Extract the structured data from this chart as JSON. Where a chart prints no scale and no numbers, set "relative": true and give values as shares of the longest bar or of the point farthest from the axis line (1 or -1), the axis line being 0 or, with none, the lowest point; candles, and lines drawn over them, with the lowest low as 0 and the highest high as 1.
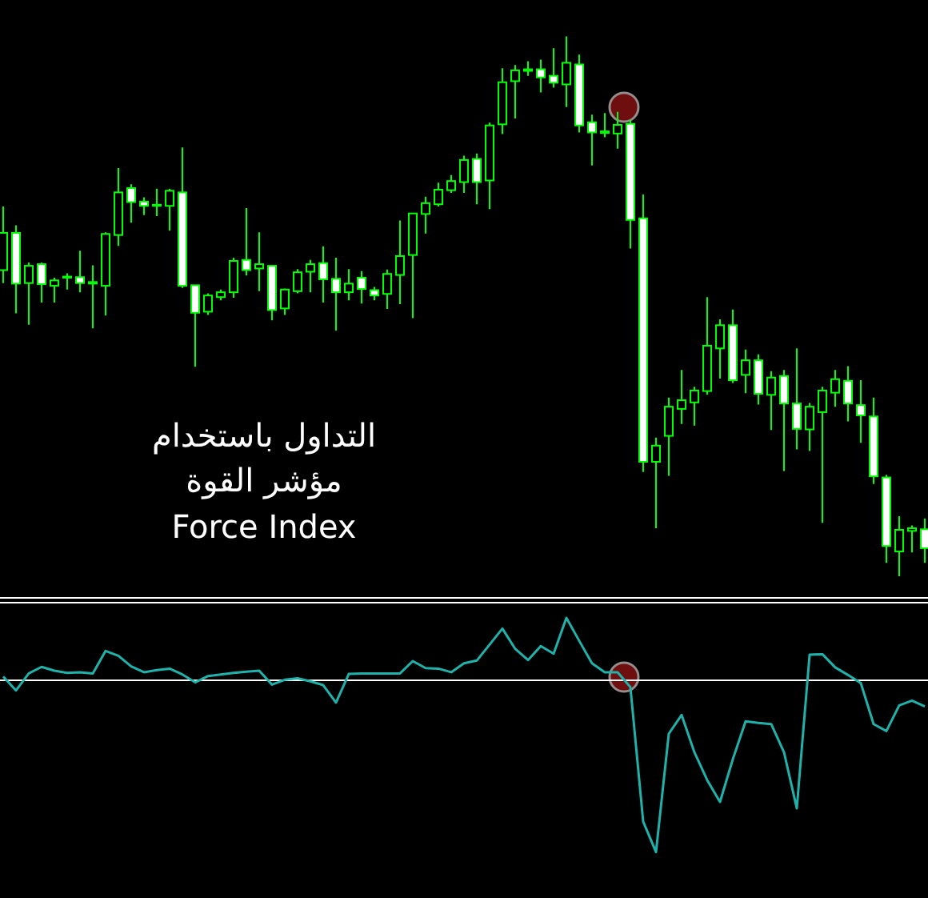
{
  "chart_data": [
    {
      "type": "candlestick",
      "relative": true,
      "color": "#00ff00",
      "categories": [
        null,
        null,
        null,
        null,
        null,
        null,
        null,
        null,
        null,
        null,
        null,
        null,
        null,
        null,
        null,
        null,
        null,
        null,
        null,
        null,
        null,
        null,
        null,
        null,
        null,
        null,
        null,
        null,
        null,
        null,
        null,
        null,
        null,
        null,
        null,
        null,
        null,
        null,
        null,
        null,
        null,
        null,
        null,
        null,
        null,
        null,
        null,
        null,
        null,
        null,
        null,
        null,
        null,
        null,
        null,
        null,
        null,
        null,
        null,
        null,
        null,
        null,
        null,
        null,
        null,
        null,
        null,
        null,
        null,
        null,
        null,
        null,
        null
      ],
      "ohlc": [
        [
          0.567,
          0.685,
          0.543,
          0.636
        ],
        [
          0.636,
          0.65,
          0.487,
          0.542
        ],
        [
          0.543,
          0.581,
          0.466,
          0.575
        ],
        [
          0.578,
          0.581,
          0.507,
          0.541
        ],
        [
          0.538,
          0.553,
          0.507,
          0.548
        ],
        [
          0.553,
          0.561,
          0.531,
          0.555
        ],
        [
          0.554,
          0.603,
          0.526,
          0.543
        ],
        [
          0.545,
          0.576,
          0.459,
          0.542
        ],
        [
          0.538,
          0.637,
          0.483,
          0.634
        ],
        [
          0.632,
          0.756,
          0.612,
          0.711
        ],
        [
          0.719,
          0.726,
          0.655,
          0.693
        ],
        [
          0.694,
          0.702,
          0.669,
          0.686
        ],
        [
          0.686,
          0.718,
          0.667,
          0.688
        ],
        [
          0.686,
          0.718,
          0.64,
          0.714
        ],
        [
          0.711,
          0.794,
          0.534,
          0.538
        ],
        [
          0.539,
          0.54,
          0.388,
          0.488
        ],
        [
          0.49,
          0.524,
          0.484,
          0.52
        ],
        [
          0.517,
          0.531,
          0.511,
          0.526
        ],
        [
          0.526,
          0.59,
          0.516,
          0.584
        ],
        [
          0.586,
          0.682,
          0.557,
          0.567
        ],
        [
          0.57,
          0.637,
          0.528,
          0.578
        ],
        [
          0.575,
          0.575,
          0.474,
          0.493
        ],
        [
          0.496,
          0.533,
          0.484,
          0.531
        ],
        [
          0.528,
          0.569,
          0.524,
          0.563
        ],
        [
          0.564,
          0.586,
          0.526,
          0.578
        ],
        [
          0.58,
          0.611,
          0.507,
          0.55
        ],
        [
          0.551,
          0.59,
          0.455,
          0.526
        ],
        [
          0.526,
          0.569,
          0.511,
          0.542
        ],
        [
          0.553,
          0.565,
          0.505,
          0.532
        ],
        [
          0.53,
          0.536,
          0.511,
          0.52
        ],
        [
          0.523,
          0.568,
          0.495,
          0.56
        ],
        [
          0.558,
          0.659,
          0.504,
          0.593
        ],
        [
          0.595,
          0.672,
          0.478,
          0.672
        ],
        [
          0.671,
          0.703,
          0.635,
          0.691
        ],
        [
          0.689,
          0.729,
          0.685,
          0.716
        ],
        [
          0.715,
          0.743,
          0.71,
          0.732
        ],
        [
          0.73,
          0.779,
          0.71,
          0.771
        ],
        [
          0.773,
          0.783,
          0.689,
          0.73
        ],
        [
          0.733,
          0.84,
          0.68,
          0.835
        ],
        [
          0.837,
          0.941,
          0.819,
          0.915
        ],
        [
          0.917,
          0.947,
          0.848,
          0.937
        ],
        [
          0.936,
          0.954,
          0.927,
          0.939
        ],
        [
          0.939,
          0.957,
          0.896,
          0.924
        ],
        [
          0.927,
          0.978,
          0.905,
          0.914
        ],
        [
          0.911,
          1.0,
          0.869,
          0.951
        ],
        [
          0.948,
          0.966,
          0.822,
          0.835
        ],
        [
          0.841,
          0.855,
          0.761,
          0.822
        ],
        [
          0.821,
          0.858,
          0.813,
          0.824
        ],
        [
          0.82,
          0.86,
          0.792,
          0.836
        ],
        [
          0.838,
          0.845,
          0.607,
          0.66
        ],
        [
          0.663,
          0.707,
          0.193,
          0.212
        ],
        [
          0.212,
          0.257,
          0.089,
          0.242
        ],
        [
          0.26,
          0.331,
          0.186,
          0.314
        ],
        [
          0.31,
          0.382,
          0.282,
          0.326
        ],
        [
          0.322,
          0.351,
          0.279,
          0.344
        ],
        [
          0.343,
          0.517,
          0.336,
          0.427
        ],
        [
          0.422,
          0.476,
          0.366,
          0.465
        ],
        [
          0.465,
          0.494,
          0.358,
          0.363
        ],
        [
          0.373,
          0.42,
          0.339,
          0.4
        ],
        [
          0.4,
          0.411,
          0.318,
          0.338
        ],
        [
          0.336,
          0.38,
          0.271,
          0.368
        ],
        [
          0.371,
          0.382,
          0.195,
          0.32
        ],
        [
          0.32,
          0.422,
          0.235,
          0.273
        ],
        [
          0.272,
          0.321,
          0.232,
          0.314
        ],
        [
          0.304,
          0.351,
          0.099,
          0.344
        ],
        [
          0.34,
          0.382,
          0.314,
          0.365
        ],
        [
          0.362,
          0.389,
          0.287,
          0.32
        ],
        [
          0.317,
          0.363,
          0.247,
          0.298
        ],
        [
          0.296,
          0.331,
          0.171,
          0.185
        ],
        [
          0.183,
          0.188,
          0.025,
          0.056
        ],
        [
          0.046,
          0.111,
          0.0,
          0.086
        ],
        [
          0.084,
          0.094,
          0.044,
          0.089
        ],
        [
          0.087,
          0.107,
          0.025,
          0.052
        ]
      ],
      "annotations": [
        "التداول باستخدام",
        "مؤشر القوة",
        "Force Index"
      ]
    },
    {
      "type": "line",
      "relative": true,
      "color": "#20b2aa",
      "categories": [
        null,
        null,
        null,
        null,
        null,
        null,
        null,
        null,
        null,
        null,
        null,
        null,
        null,
        null,
        null,
        null,
        null,
        null,
        null,
        null,
        null,
        null,
        null,
        null,
        null,
        null,
        null,
        null,
        null,
        null,
        null,
        null,
        null,
        null,
        null,
        null,
        null,
        null,
        null,
        null,
        null,
        null,
        null,
        null,
        null,
        null,
        null,
        null,
        null,
        null,
        null,
        null,
        null,
        null,
        null,
        null,
        null,
        null,
        null,
        null,
        null,
        null,
        null,
        null,
        null,
        null,
        null,
        null,
        null,
        null,
        null,
        null,
        null
      ],
      "values": [
        0.022,
        -0.059,
        0.04,
        0.078,
        0.056,
        0.043,
        0.047,
        0.04,
        0.171,
        0.143,
        0.081,
        0.047,
        0.059,
        0.068,
        0.034,
        -0.012,
        0.025,
        0.034,
        0.043,
        0.05,
        0.056,
        -0.025,
        0.003,
        0.012,
        -0.006,
        -0.028,
        -0.13,
        0.037,
        0.04,
        0.04,
        0.04,
        0.04,
        0.112,
        0.071,
        0.068,
        0.047,
        0.099,
        0.115,
        0.208,
        0.301,
        0.183,
        0.118,
        0.199,
        0.155,
        0.363,
        0.23,
        0.099,
        0.047,
        0.047,
        -0.04,
        -0.823,
        -1,
        -0.311,
        -0.202,
        -0.419,
        -0.581,
        -0.708,
        -0.46,
        -0.239,
        -0.248,
        -0.255,
        -0.419,
        -0.745,
        0.149,
        0.152,
        0.075,
        0.031,
        -0.016,
        -0.255,
        -0.295,
        -0.146,
        -0.118,
        -0.152
      ]
    }
  ]
}
